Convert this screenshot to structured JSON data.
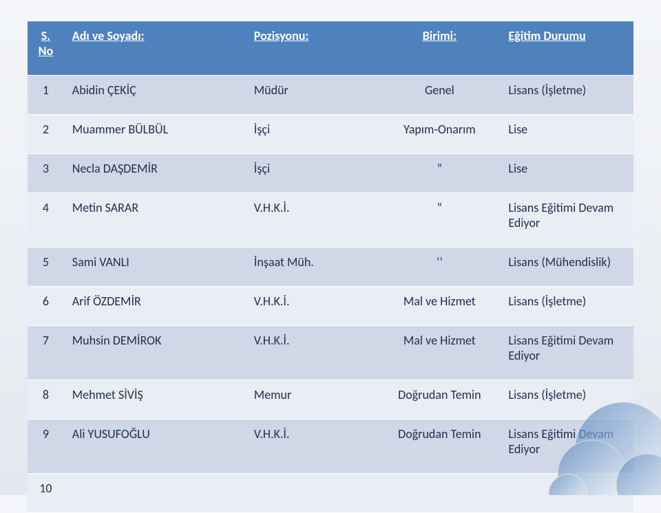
{
  "table": {
    "header_bg": "#4f81bd",
    "header_fg": "#ffffff",
    "header_border": "#ffffff",
    "row_alt_bg": "#e9edf4",
    "row_bg": "#d0d8e8",
    "row_fg": "#21304f",
    "row_border": "#ffffff",
    "columns": {
      "no": "S. No",
      "name": "Adı ve Soyadı:",
      "pos": "Pozisyonu:",
      "unit": "Birimi:",
      "edu": "Eğitim Durumu"
    },
    "rows": [
      {
        "no": "1",
        "name": "Abidin ÇEKİÇ",
        "pos": "Müdür",
        "unit": "Genel",
        "edu": "Lisans (İşletme)"
      },
      {
        "no": "2",
        "name": "Muammer BÜLBÜL",
        "pos": "İşçi",
        "unit": "Yapım-Onarım",
        "edu": "Lise"
      },
      {
        "no": "3",
        "name": "Necla DAŞDEMİR",
        "pos": "İşçi",
        "unit": "“",
        "edu": "Lise"
      },
      {
        "no": "4",
        "name": "Metin SARAR",
        "pos": "V.H.K.İ.",
        "unit": "“",
        "edu": "Lisans Eğitimi Devam Ediyor"
      },
      {
        "no": "5",
        "name": "Sami VANLI",
        "pos": "İnşaat Müh.",
        "unit": "‘’",
        "edu": "Lisans (Mühendislik)"
      },
      {
        "no": "6",
        "name": "Arif ÖZDEMİR",
        "pos": "V.H.K.İ.",
        "unit": "Mal ve Hizmet",
        "edu": "Lisans (İşletme)"
      },
      {
        "no": "7",
        "name": "Muhsin DEMİROK",
        "pos": "V.H.K.İ.",
        "unit": "Mal ve Hizmet",
        "edu": "Lisans Eğitimi Devam Ediyor"
      },
      {
        "no": "8",
        "name": "Mehmet SİVİŞ",
        "pos": "Memur",
        "unit": "Doğrudan Temin",
        "edu": "Lisans (İşletme)"
      },
      {
        "no": "9",
        "name": "Ali YUSUFOĞLU",
        "pos": "V.H.K.İ.",
        "unit": "Doğrudan Temin",
        "edu": "Lisans Eğitimi Devam Ediyor"
      },
      {
        "no": "10",
        "name": "",
        "pos": "",
        "unit": "",
        "edu": ""
      }
    ]
  },
  "decoration": {
    "grad_start": "#4f81bd",
    "grad_end": "#ffffff",
    "stroke": "#d9d9d9",
    "opacity": 0.65
  },
  "background": {
    "grad_top": "#f4f6f9",
    "grad_bottom": "#e4e8ee"
  }
}
